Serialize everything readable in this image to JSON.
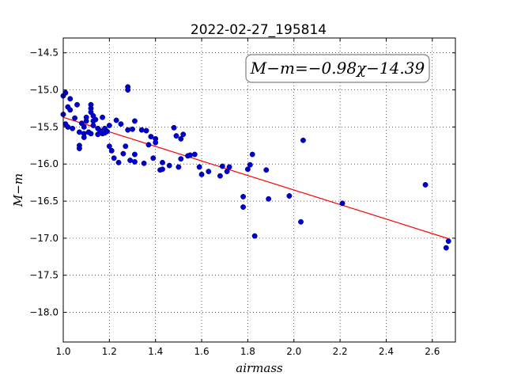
{
  "chart_data": {
    "type": "scatter",
    "title": "2022-02-27_195814",
    "xlabel": "airmass",
    "ylabel": "M−m",
    "xlim": [
      1.0,
      2.7
    ],
    "ylim": [
      -18.4,
      -14.3
    ],
    "xticks": [
      1.0,
      1.2,
      1.4,
      1.6,
      1.8,
      2.0,
      2.2,
      2.4,
      2.6
    ],
    "xtick_labels": [
      "1.0",
      "1.2",
      "1.4",
      "1.6",
      "1.8",
      "2.0",
      "2.2",
      "2.4",
      "2.6"
    ],
    "yticks": [
      -14.5,
      -15.0,
      -15.5,
      -16.0,
      -16.5,
      -17.0,
      -17.5,
      -18.0
    ],
    "ytick_labels": [
      "−14.5",
      "−15.0",
      "−15.5",
      "−16.0",
      "−16.5",
      "−17.0",
      "−17.5",
      "−18.0"
    ],
    "grid": true,
    "annotation": "M−m=−0.98χ−14.39",
    "fit": {
      "slope": -0.98,
      "intercept": -14.39,
      "x_range": [
        1.0,
        2.67
      ],
      "color": "#ff0000"
    },
    "point_color": "#0000cc",
    "points": [
      [
        1.0,
        -15.33
      ],
      [
        1.0,
        -15.08
      ],
      [
        1.01,
        -15.04
      ],
      [
        1.01,
        -15.46
      ],
      [
        1.02,
        -15.5
      ],
      [
        1.02,
        -15.23
      ],
      [
        1.03,
        -15.27
      ],
      [
        1.03,
        -15.12
      ],
      [
        1.04,
        -15.52
      ],
      [
        1.05,
        -15.38
      ],
      [
        1.06,
        -15.2
      ],
      [
        1.07,
        -15.75
      ],
      [
        1.07,
        -15.79
      ],
      [
        1.07,
        -15.57
      ],
      [
        1.08,
        -15.45
      ],
      [
        1.09,
        -15.59
      ],
      [
        1.09,
        -15.64
      ],
      [
        1.09,
        -15.5
      ],
      [
        1.1,
        -15.37
      ],
      [
        1.1,
        -15.42
      ],
      [
        1.11,
        -15.57
      ],
      [
        1.12,
        -15.59
      ],
      [
        1.12,
        -15.2
      ],
      [
        1.12,
        -15.25
      ],
      [
        1.12,
        -15.3
      ],
      [
        1.13,
        -15.35
      ],
      [
        1.13,
        -15.42
      ],
      [
        1.13,
        -15.48
      ],
      [
        1.14,
        -15.4
      ],
      [
        1.15,
        -15.52
      ],
      [
        1.15,
        -15.6
      ],
      [
        1.16,
        -15.55
      ],
      [
        1.17,
        -15.59
      ],
      [
        1.17,
        -15.37
      ],
      [
        1.18,
        -15.52
      ],
      [
        1.18,
        -15.58
      ],
      [
        1.19,
        -15.56
      ],
      [
        1.2,
        -15.48
      ],
      [
        1.2,
        -15.76
      ],
      [
        1.21,
        -15.82
      ],
      [
        1.22,
        -15.92
      ],
      [
        1.23,
        -15.41
      ],
      [
        1.24,
        -15.98
      ],
      [
        1.25,
        -15.46
      ],
      [
        1.26,
        -15.86
      ],
      [
        1.27,
        -15.76
      ],
      [
        1.28,
        -15.54
      ],
      [
        1.28,
        -14.96
      ],
      [
        1.28,
        -15.0
      ],
      [
        1.29,
        -15.95
      ],
      [
        1.3,
        -15.53
      ],
      [
        1.31,
        -15.42
      ],
      [
        1.31,
        -15.87
      ],
      [
        1.31,
        -15.97
      ],
      [
        1.34,
        -15.54
      ],
      [
        1.35,
        -15.99
      ],
      [
        1.36,
        -15.55
      ],
      [
        1.37,
        -15.74
      ],
      [
        1.38,
        -15.63
      ],
      [
        1.39,
        -15.92
      ],
      [
        1.4,
        -15.66
      ],
      [
        1.4,
        -15.71
      ],
      [
        1.42,
        -16.08
      ],
      [
        1.43,
        -16.07
      ],
      [
        1.43,
        -15.98
      ],
      [
        1.46,
        -16.02
      ],
      [
        1.48,
        -15.51
      ],
      [
        1.49,
        -15.62
      ],
      [
        1.5,
        -16.04
      ],
      [
        1.51,
        -15.66
      ],
      [
        1.51,
        -15.93
      ],
      [
        1.52,
        -15.6
      ],
      [
        1.54,
        -15.89
      ],
      [
        1.55,
        -15.88
      ],
      [
        1.57,
        -15.87
      ],
      [
        1.59,
        -16.04
      ],
      [
        1.6,
        -16.14
      ],
      [
        1.63,
        -16.1
      ],
      [
        1.68,
        -16.16
      ],
      [
        1.69,
        -16.03
      ],
      [
        1.71,
        -16.1
      ],
      [
        1.72,
        -16.04
      ],
      [
        1.78,
        -16.44
      ],
      [
        1.78,
        -16.58
      ],
      [
        1.8,
        -16.07
      ],
      [
        1.81,
        -16.01
      ],
      [
        1.82,
        -15.87
      ],
      [
        1.83,
        -16.97
      ],
      [
        1.88,
        -16.08
      ],
      [
        1.89,
        -16.47
      ],
      [
        1.98,
        -16.43
      ],
      [
        2.03,
        -16.78
      ],
      [
        2.04,
        -15.68
      ],
      [
        2.21,
        -16.53
      ],
      [
        2.57,
        -16.28
      ],
      [
        2.66,
        -17.13
      ],
      [
        2.67,
        -17.04
      ]
    ]
  }
}
